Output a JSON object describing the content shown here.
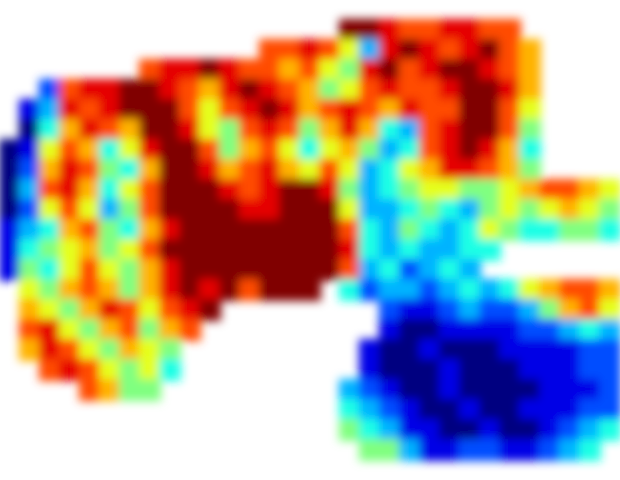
{
  "chart_data": {
    "type": "heatmap",
    "zlim": [
      0,
      10
    ],
    "cells": [
      [
        null,
        null,
        null,
        null,
        null,
        null,
        null,
        null,
        null,
        null,
        null,
        null,
        null,
        null,
        null,
        null,
        null,
        null,
        null,
        null,
        null,
        null,
        null,
        null,
        null,
        null,
        null,
        null,
        null,
        null,
        null
      ],
      [
        null,
        null,
        null,
        null,
        null,
        null,
        null,
        null,
        null,
        null,
        null,
        null,
        null,
        null,
        null,
        null,
        null,
        10,
        10,
        9,
        8,
        8,
        9,
        9,
        8,
        8,
        null,
        null,
        null,
        null,
        null
      ],
      [
        null,
        null,
        null,
        null,
        null,
        null,
        null,
        null,
        null,
        null,
        null,
        null,
        null,
        8,
        8,
        9,
        8,
        6,
        3,
        9,
        10,
        9,
        8,
        9,
        10,
        8,
        7,
        null,
        null,
        null,
        null
      ],
      [
        null,
        null,
        null,
        null,
        null,
        null,
        null,
        8,
        9,
        9,
        10,
        9,
        8,
        8,
        7,
        8,
        6,
        5,
        9,
        10,
        8,
        9,
        10,
        10,
        9,
        8,
        7,
        null,
        null,
        null,
        null
      ],
      [
        null,
        null,
        2,
        8,
        9,
        9,
        10,
        10,
        9,
        8,
        7,
        9,
        10,
        9,
        8,
        7,
        5,
        6,
        8,
        9,
        8,
        8,
        9,
        10,
        10,
        9,
        7,
        null,
        null,
        null,
        null
      ],
      [
        null,
        1,
        3,
        9,
        8,
        9,
        10,
        10,
        10,
        8,
        6,
        8,
        9,
        10,
        9,
        7,
        8,
        9,
        8,
        7,
        9,
        8,
        8,
        10,
        10,
        8,
        6,
        null,
        null,
        null,
        null
      ],
      [
        null,
        0,
        4,
        7,
        9,
        8,
        7,
        10,
        10,
        9,
        6,
        5,
        8,
        9,
        8,
        5,
        7,
        9,
        7,
        4,
        3,
        8,
        9,
        10,
        10,
        8,
        5,
        null,
        null,
        null,
        null
      ],
      [
        0,
        1,
        6,
        8,
        7,
        4,
        6,
        9,
        10,
        10,
        8,
        5,
        7,
        8,
        6,
        4,
        6,
        7,
        5,
        3,
        4,
        8,
        9,
        10,
        9,
        7,
        4,
        null,
        null,
        null,
        null
      ],
      [
        0,
        2,
        7,
        9,
        8,
        5,
        4,
        7,
        10,
        10,
        9,
        7,
        8,
        9,
        7,
        6,
        8,
        6,
        3,
        4,
        6,
        7,
        9,
        9,
        8,
        7,
        5,
        null,
        null,
        null,
        null
      ],
      [
        0,
        3,
        8,
        9,
        7,
        4,
        6,
        8,
        10,
        10,
        10,
        9,
        8,
        9,
        10,
        10,
        9,
        5,
        3,
        4,
        5,
        6,
        6,
        5,
        5,
        6,
        7,
        8,
        8,
        7,
        6
      ],
      [
        0,
        2,
        6,
        8,
        6,
        3,
        5,
        8,
        10,
        10,
        10,
        10,
        9,
        9,
        10,
        10,
        10,
        6,
        3,
        3,
        4,
        5,
        4,
        3,
        5,
        6,
        5,
        6,
        7,
        6,
        5
      ],
      [
        1,
        3,
        4,
        7,
        8,
        5,
        4,
        7,
        9,
        10,
        10,
        10,
        10,
        10,
        10,
        10,
        10,
        8,
        4,
        3,
        5,
        4,
        3,
        4,
        6,
        5,
        4,
        4,
        5,
        5,
        4
      ],
      [
        1,
        4,
        5,
        6,
        7,
        5,
        6,
        8,
        10,
        10,
        10,
        10,
        10,
        10,
        10,
        10,
        10,
        9,
        4,
        3,
        4,
        3,
        3,
        4,
        4,
        null,
        null,
        null,
        null,
        null,
        null
      ],
      [
        1,
        5,
        4,
        6,
        8,
        6,
        5,
        7,
        9,
        10,
        10,
        10,
        10,
        10,
        10,
        10,
        10,
        8,
        3,
        4,
        2,
        3,
        4,
        3,
        null,
        null,
        null,
        null,
        null,
        null,
        null
      ],
      [
        null,
        6,
        5,
        7,
        8,
        7,
        5,
        7,
        9,
        10,
        9,
        10,
        8,
        10,
        10,
        10,
        null,
        4,
        2,
        3,
        3,
        2,
        3,
        4,
        3,
        4,
        6,
        7,
        8,
        8,
        7
      ],
      [
        null,
        7,
        6,
        5,
        7,
        9,
        8,
        6,
        8,
        9,
        10,
        null,
        null,
        null,
        null,
        null,
        null,
        null,
        null,
        2,
        1,
        1,
        2,
        3,
        2,
        2,
        3,
        5,
        7,
        8,
        6
      ],
      [
        null,
        8,
        9,
        6,
        5,
        7,
        8,
        5,
        7,
        8,
        null,
        null,
        null,
        null,
        null,
        null,
        null,
        null,
        null,
        1,
        0,
        0,
        1,
        1,
        1,
        1,
        2,
        2,
        3,
        4,
        3
      ],
      [
        null,
        7,
        9,
        8,
        6,
        5,
        7,
        6,
        5,
        null,
        null,
        null,
        null,
        null,
        null,
        null,
        null,
        null,
        1,
        0,
        0,
        1,
        0,
        0,
        0,
        1,
        1,
        1,
        1,
        2,
        2
      ],
      [
        null,
        null,
        8,
        9,
        8,
        6,
        5,
        6,
        4,
        null,
        null,
        null,
        null,
        null,
        null,
        null,
        null,
        null,
        1,
        0,
        0,
        0,
        1,
        0,
        0,
        0,
        1,
        1,
        1,
        2,
        2
      ],
      [
        null,
        null,
        null,
        null,
        8,
        7,
        5,
        5,
        null,
        null,
        null,
        null,
        null,
        null,
        null,
        null,
        null,
        3,
        2,
        1,
        0,
        0,
        1,
        0,
        0,
        0,
        0,
        1,
        1,
        1,
        2
      ],
      [
        null,
        null,
        null,
        null,
        null,
        null,
        null,
        null,
        null,
        null,
        null,
        null,
        null,
        null,
        null,
        null,
        null,
        4,
        3,
        2,
        1,
        0,
        0,
        1,
        0,
        0,
        1,
        1,
        1,
        2,
        2
      ],
      [
        null,
        null,
        null,
        null,
        null,
        null,
        null,
        null,
        null,
        null,
        null,
        null,
        null,
        null,
        null,
        null,
        null,
        5,
        4,
        3,
        1,
        1,
        0,
        0,
        1,
        0,
        0,
        1,
        2,
        3,
        4
      ],
      [
        null,
        null,
        null,
        null,
        null,
        null,
        null,
        null,
        null,
        null,
        null,
        null,
        null,
        null,
        null,
        null,
        null,
        null,
        5,
        5,
        3,
        1,
        1,
        2,
        2,
        1,
        1,
        2,
        3,
        4,
        null
      ],
      [
        null,
        null,
        null,
        null,
        null,
        null,
        null,
        null,
        null,
        null,
        null,
        null,
        null,
        null,
        null,
        null,
        null,
        null,
        null,
        null,
        null,
        null,
        null,
        null,
        null,
        null,
        null,
        null,
        null,
        null,
        null
      ]
    ]
  }
}
